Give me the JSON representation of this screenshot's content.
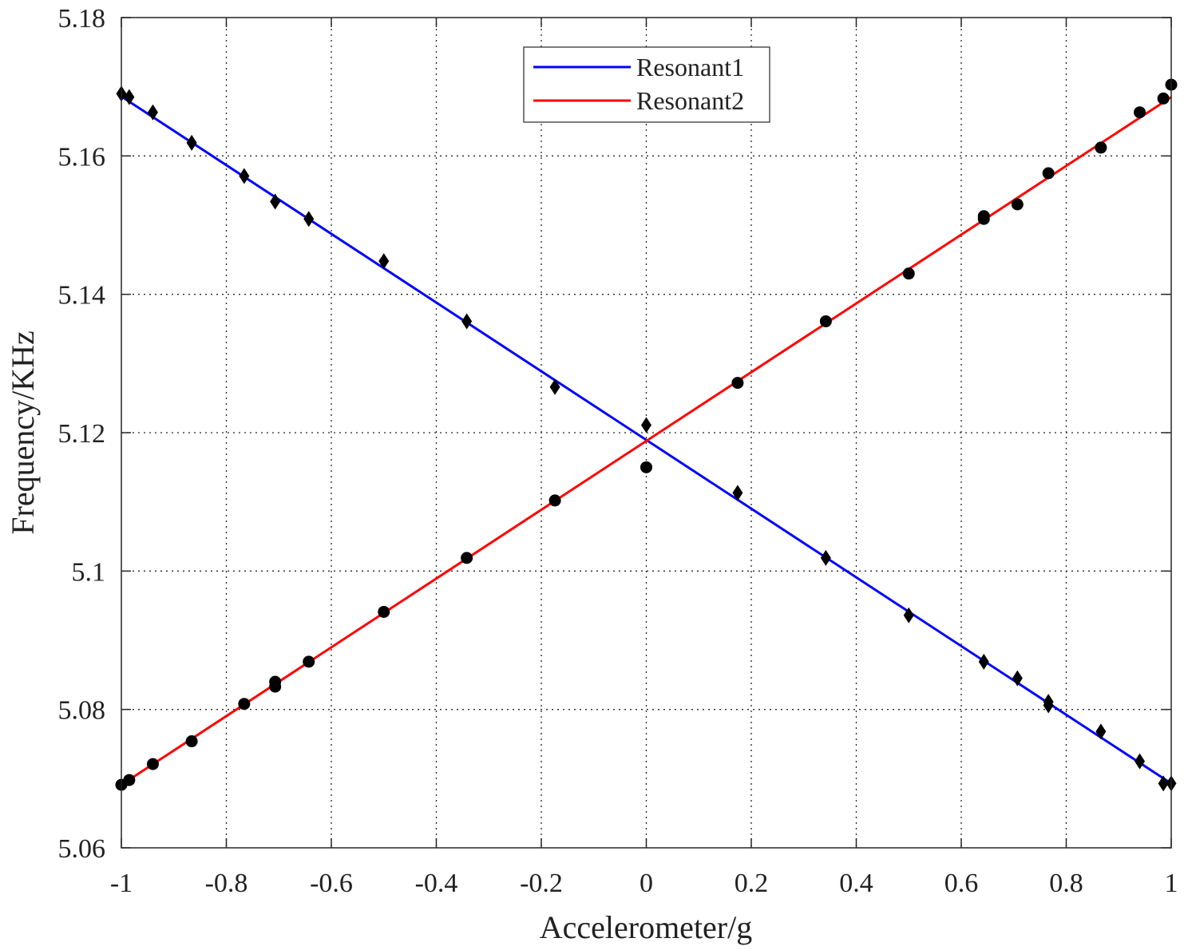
{
  "chart_data": {
    "type": "scatter",
    "title": "",
    "xlabel": "Accelerometer/g",
    "ylabel": "Frequency/KHz",
    "xlim": [
      -1,
      1
    ],
    "ylim": [
      5.06,
      5.18
    ],
    "xticks": [
      -1,
      -0.8,
      -0.6,
      -0.4,
      -0.2,
      0,
      0.2,
      0.4,
      0.6,
      0.8,
      1
    ],
    "xtick_labels": [
      "-1",
      "-0.8",
      "-0.6",
      "-0.4",
      "-0.2",
      "0",
      "0.2",
      "0.4",
      "0.6",
      "0.8",
      "1"
    ],
    "yticks": [
      5.06,
      5.08,
      5.1,
      5.12,
      5.14,
      5.16,
      5.18
    ],
    "ytick_labels": [
      "5.06",
      "5.08",
      "5.1",
      "5.12",
      "5.14",
      "5.16",
      "5.18"
    ],
    "grid": true,
    "legend_position": "top-center",
    "series": [
      {
        "name": "Resonant1",
        "kind": "fit-line",
        "color": "#0000ff",
        "x": [
          -1,
          1
        ],
        "y": [
          5.1686,
          5.0693
        ]
      },
      {
        "name": "Resonant2",
        "kind": "fit-line",
        "color": "#ff0000",
        "x": [
          -1,
          1
        ],
        "y": [
          5.0691,
          5.1685
        ]
      },
      {
        "kind": "markers",
        "marker": "diamond",
        "color": "#000000",
        "x": [
          -1.0,
          -0.985,
          -0.94,
          -0.866,
          -0.766,
          -0.707,
          -0.643,
          -0.5,
          -0.342,
          -0.174,
          0.0,
          0.174,
          0.342,
          0.5,
          0.643,
          0.707,
          0.766,
          0.766,
          0.866,
          0.94,
          0.985,
          1.0
        ],
        "y": [
          5.169,
          5.1685,
          5.1663,
          5.1619,
          5.1571,
          5.1534,
          5.1509,
          5.1448,
          5.1361,
          5.1266,
          5.1211,
          5.1113,
          5.1019,
          5.0936,
          5.0869,
          5.0845,
          5.0806,
          5.0811,
          5.0768,
          5.0725,
          5.0693,
          5.0693
        ]
      },
      {
        "kind": "markers",
        "marker": "circle",
        "color": "#000000",
        "x": [
          -1.0,
          -0.985,
          -0.94,
          -0.866,
          -0.766,
          -0.707,
          -0.707,
          -0.643,
          -0.5,
          -0.342,
          -0.174,
          0.0,
          0.174,
          0.342,
          0.5,
          0.643,
          0.643,
          0.707,
          0.766,
          0.866,
          0.94,
          0.985,
          1.0
        ],
        "y": [
          5.0691,
          5.0698,
          5.0721,
          5.0754,
          5.0808,
          5.0833,
          5.084,
          5.0869,
          5.0941,
          5.1019,
          5.1102,
          5.115,
          5.1272,
          5.1361,
          5.143,
          5.1509,
          5.1513,
          5.153,
          5.1575,
          5.1612,
          5.1663,
          5.1683,
          5.1703
        ]
      }
    ]
  }
}
